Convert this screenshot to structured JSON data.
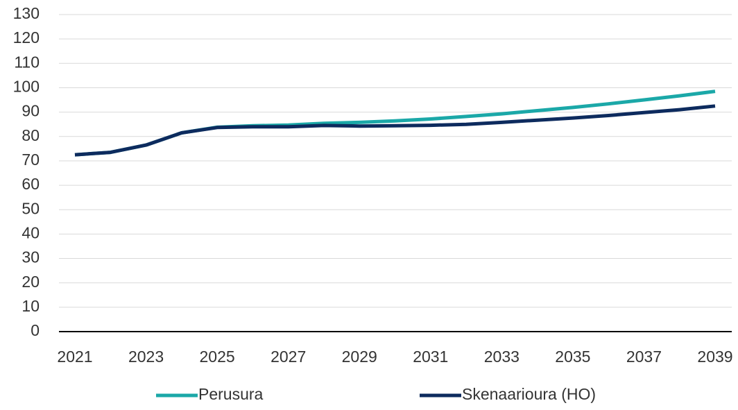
{
  "chart_data": {
    "type": "line",
    "x": [
      2021,
      2022,
      2023,
      2024,
      2025,
      2026,
      2027,
      2028,
      2029,
      2030,
      2031,
      2032,
      2033,
      2034,
      2035,
      2036,
      2037,
      2038,
      2039
    ],
    "series": [
      {
        "name": "Perusura",
        "color": "#1ba8a8",
        "values": [
          72.5,
          73.5,
          76.5,
          81.5,
          83.8,
          84.4,
          84.7,
          85.4,
          85.8,
          86.4,
          87.2,
          88.2,
          89.3,
          90.6,
          91.9,
          93.4,
          95,
          96.7,
          98.5
        ]
      },
      {
        "name": "Skenaarioura (HO)",
        "color": "#0d2b5e",
        "values": [
          72.5,
          73.5,
          76.5,
          81.5,
          83.7,
          84,
          84,
          84.5,
          84.3,
          84.4,
          84.6,
          85,
          85.8,
          86.7,
          87.6,
          88.6,
          89.8,
          91,
          92.5
        ]
      }
    ],
    "xlim": [
      2021,
      2039
    ],
    "xticks": [
      2021,
      2023,
      2025,
      2027,
      2029,
      2031,
      2033,
      2035,
      2037,
      2039
    ],
    "ylim": [
      0,
      130
    ],
    "yticks": [
      0,
      10,
      20,
      30,
      40,
      50,
      60,
      70,
      80,
      90,
      100,
      110,
      120,
      130
    ],
    "grid": true,
    "legend": "bottom"
  }
}
